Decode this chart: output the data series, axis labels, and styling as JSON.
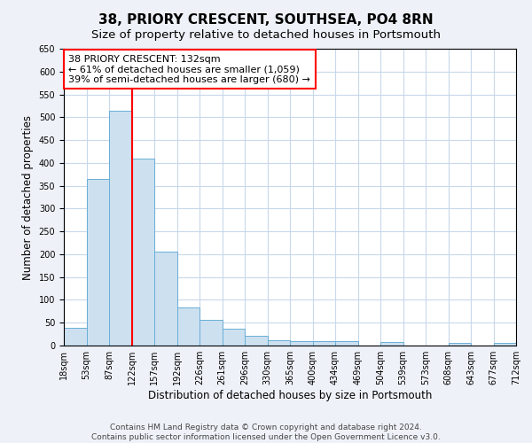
{
  "title": "38, PRIORY CRESCENT, SOUTHSEA, PO4 8RN",
  "subtitle": "Size of property relative to detached houses in Portsmouth",
  "xlabel": "Distribution of detached houses by size in Portsmouth",
  "ylabel": "Number of detached properties",
  "footer_line1": "Contains HM Land Registry data © Crown copyright and database right 2024.",
  "footer_line2": "Contains public sector information licensed under the Open Government Licence v3.0.",
  "bin_labels": [
    "18sqm",
    "53sqm",
    "87sqm",
    "122sqm",
    "157sqm",
    "192sqm",
    "226sqm",
    "261sqm",
    "296sqm",
    "330sqm",
    "365sqm",
    "400sqm",
    "434sqm",
    "469sqm",
    "504sqm",
    "539sqm",
    "573sqm",
    "608sqm",
    "643sqm",
    "677sqm",
    "712sqm"
  ],
  "bar_values": [
    38,
    365,
    515,
    410,
    205,
    84,
    56,
    36,
    22,
    12,
    10,
    10,
    9,
    0,
    8,
    0,
    0,
    5,
    0,
    5
  ],
  "bar_color": "#cce0f0",
  "bar_edge_color": "#6aaed6",
  "grid_color": "#c8d8ea",
  "annotation_line1": "38 PRIORY CRESCENT: 132sqm",
  "annotation_line2": "← 61% of detached houses are smaller (1,059)",
  "annotation_line3": "39% of semi-detached houses are larger (680) →",
  "annotation_box_color": "white",
  "annotation_box_edge_color": "red",
  "vline_color": "red",
  "ylim": [
    0,
    650
  ],
  "yticks": [
    0,
    50,
    100,
    150,
    200,
    250,
    300,
    350,
    400,
    450,
    500,
    550,
    600,
    650
  ],
  "background_color": "#eef2f8",
  "plot_background_color": "white",
  "title_fontsize": 11,
  "subtitle_fontsize": 9.5,
  "axis_label_fontsize": 8.5,
  "tick_fontsize": 7,
  "annotation_fontsize": 8,
  "footer_fontsize": 6.5
}
